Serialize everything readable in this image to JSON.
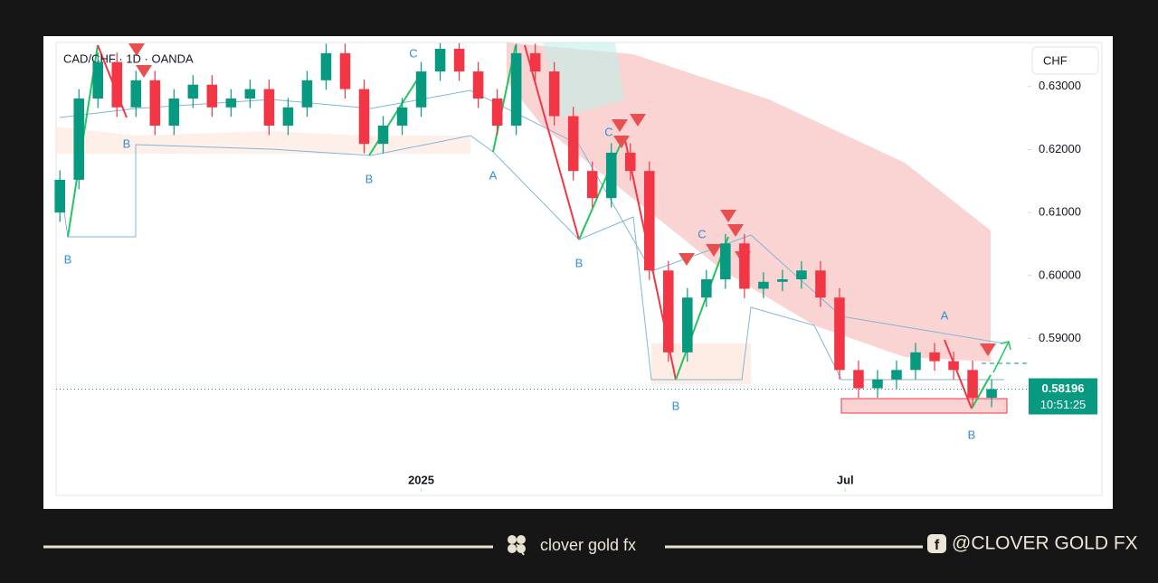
{
  "chart_data": {
    "type": "candlestick",
    "title": "CAD/CHF · 1D · OANDA",
    "currency": "CHF",
    "open": [
      0.61,
      0.6152,
      0.6281,
      0.6339,
      0.6267,
      0.631,
      0.6238,
      0.6281,
      0.6303,
      0.6267,
      0.6281,
      0.6296,
      0.6238,
      0.6267,
      0.631,
      0.6353,
      0.6296,
      0.6209,
      0.6238,
      0.6267,
      0.6324,
      0.636,
      0.6324,
      0.6281,
      0.6238,
      0.6353,
      0.6324,
      0.6253,
      0.6166,
      0.6123,
      0.6195,
      0.6166,
      0.6008,
      0.5878,
      0.5965,
      0.5994,
      0.6051,
      0.5979,
      0.599,
      0.5994,
      0.6008,
      0.5965,
      0.585,
      0.5821,
      0.5835,
      0.585,
      0.5878,
      0.5864,
      0.585,
      0.5806
    ],
    "high": [
      0.6167,
      0.6296,
      0.6354,
      0.6354,
      0.6325,
      0.6325,
      0.6296,
      0.6318,
      0.6318,
      0.6296,
      0.6311,
      0.6311,
      0.6282,
      0.6325,
      0.6368,
      0.6368,
      0.6311,
      0.6253,
      0.6282,
      0.6339,
      0.6369,
      0.6369,
      0.6339,
      0.6296,
      0.6368,
      0.6368,
      0.6339,
      0.6268,
      0.6181,
      0.621,
      0.621,
      0.6181,
      0.6023,
      0.598,
      0.6009,
      0.6066,
      0.6066,
      0.6005,
      0.6009,
      0.6023,
      0.6023,
      0.598,
      0.5865,
      0.585,
      0.5865,
      0.5893,
      0.5893,
      0.5879,
      0.5865,
      0.5835
    ],
    "low": [
      0.6085,
      0.6137,
      0.6266,
      0.6252,
      0.6252,
      0.6223,
      0.6223,
      0.6266,
      0.6252,
      0.6252,
      0.6266,
      0.6223,
      0.6223,
      0.6252,
      0.6295,
      0.6281,
      0.6194,
      0.6194,
      0.6223,
      0.6252,
      0.6309,
      0.6309,
      0.6266,
      0.6223,
      0.6223,
      0.6309,
      0.6238,
      0.6151,
      0.6108,
      0.6108,
      0.6151,
      0.5993,
      0.5863,
      0.5863,
      0.595,
      0.5979,
      0.5964,
      0.5964,
      0.5975,
      0.5979,
      0.595,
      0.5835,
      0.5806,
      0.5806,
      0.582,
      0.5835,
      0.5849,
      0.5835,
      0.5791,
      0.5791
    ],
    "close": [
      0.6152,
      0.6281,
      0.6339,
      0.6267,
      0.631,
      0.6238,
      0.6281,
      0.6303,
      0.6267,
      0.6281,
      0.6296,
      0.6238,
      0.6267,
      0.631,
      0.6353,
      0.6296,
      0.6209,
      0.6238,
      0.6267,
      0.6324,
      0.636,
      0.6324,
      0.6281,
      0.6238,
      0.6353,
      0.6324,
      0.6253,
      0.6166,
      0.6123,
      0.6195,
      0.6166,
      0.6008,
      0.5878,
      0.5965,
      0.5994,
      0.6051,
      0.5979,
      0.599,
      0.5994,
      0.6008,
      0.5965,
      0.585,
      0.5821,
      0.5835,
      0.585,
      0.5878,
      0.5864,
      0.585,
      0.5806,
      0.58196
    ],
    "up_color": "#089981",
    "down_color": "#f23645",
    "xlim": [
      -0.2,
      54.8
    ],
    "xticks": [
      {
        "value": 19,
        "label": "2025"
      },
      {
        "value": 41.3,
        "label": "Jul"
      }
    ],
    "ylim": [
      0.5651,
      0.637
    ],
    "yticks": [
      {
        "value": 0.59,
        "label": "0.59000"
      },
      {
        "value": 0.6,
        "label": "0.60000"
      },
      {
        "value": 0.61,
        "label": "0.61000"
      },
      {
        "value": 0.62,
        "label": "0.62000"
      },
      {
        "value": 0.63,
        "label": "0.63000"
      }
    ],
    "countdown": "10:51:25",
    "annotations": [
      "B",
      "B",
      "B",
      "C",
      "A",
      "B",
      "C",
      "C",
      "B",
      "A",
      "B"
    ]
  },
  "footer": {
    "brand": "clover gold fx",
    "handle": "@CLOVER GOLD FX"
  }
}
